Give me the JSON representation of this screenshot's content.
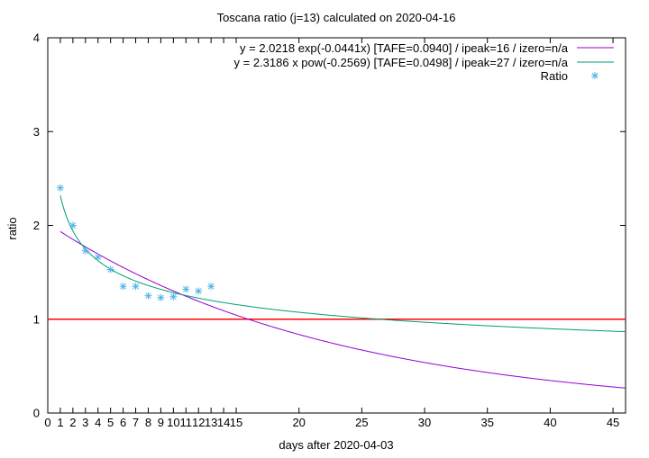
{
  "chart_data": {
    "type": "scatter",
    "title": "Toscana ratio (j=13) calculated on 2020-04-16",
    "xlabel": "days after 2020-04-03",
    "ylabel": "ratio",
    "xlim": [
      0,
      46
    ],
    "ylim": [
      0,
      4
    ],
    "x_ticks": [
      0,
      1,
      2,
      3,
      4,
      5,
      6,
      7,
      8,
      9,
      10,
      11,
      12,
      13,
      14,
      15,
      20,
      25,
      30,
      35,
      40,
      45
    ],
    "y_ticks": [
      0,
      1,
      2,
      3,
      4
    ],
    "grid": false,
    "legend_position": "top-right",
    "reference_line": {
      "y": 1,
      "color": "#ff0000"
    },
    "series": [
      {
        "name": "y = 2.0218 exp(-0.0441x)  [TAFE=0.0940] / ipeak=16 / izero=n/a",
        "kind": "line",
        "model": "exp",
        "a": 2.0218,
        "b": -0.0441,
        "x_range": [
          1,
          46
        ],
        "color": "#9400d3"
      },
      {
        "name": "y = 2.3186 x pow(-0.2569)  [TAFE=0.0498] / ipeak=27 / izero=n/a",
        "kind": "line",
        "model": "pow",
        "a": 2.3186,
        "b": -0.2569,
        "x_range": [
          1,
          46
        ],
        "color": "#009e73"
      },
      {
        "name": "Ratio",
        "kind": "points",
        "color": "#56b4e9",
        "x": [
          1,
          2,
          3,
          4,
          5,
          6,
          7,
          8,
          9,
          10,
          11,
          12,
          13
        ],
        "y": [
          2.4,
          2.0,
          1.73,
          1.66,
          1.53,
          1.35,
          1.35,
          1.25,
          1.23,
          1.24,
          1.32,
          1.3,
          1.35
        ]
      }
    ]
  }
}
